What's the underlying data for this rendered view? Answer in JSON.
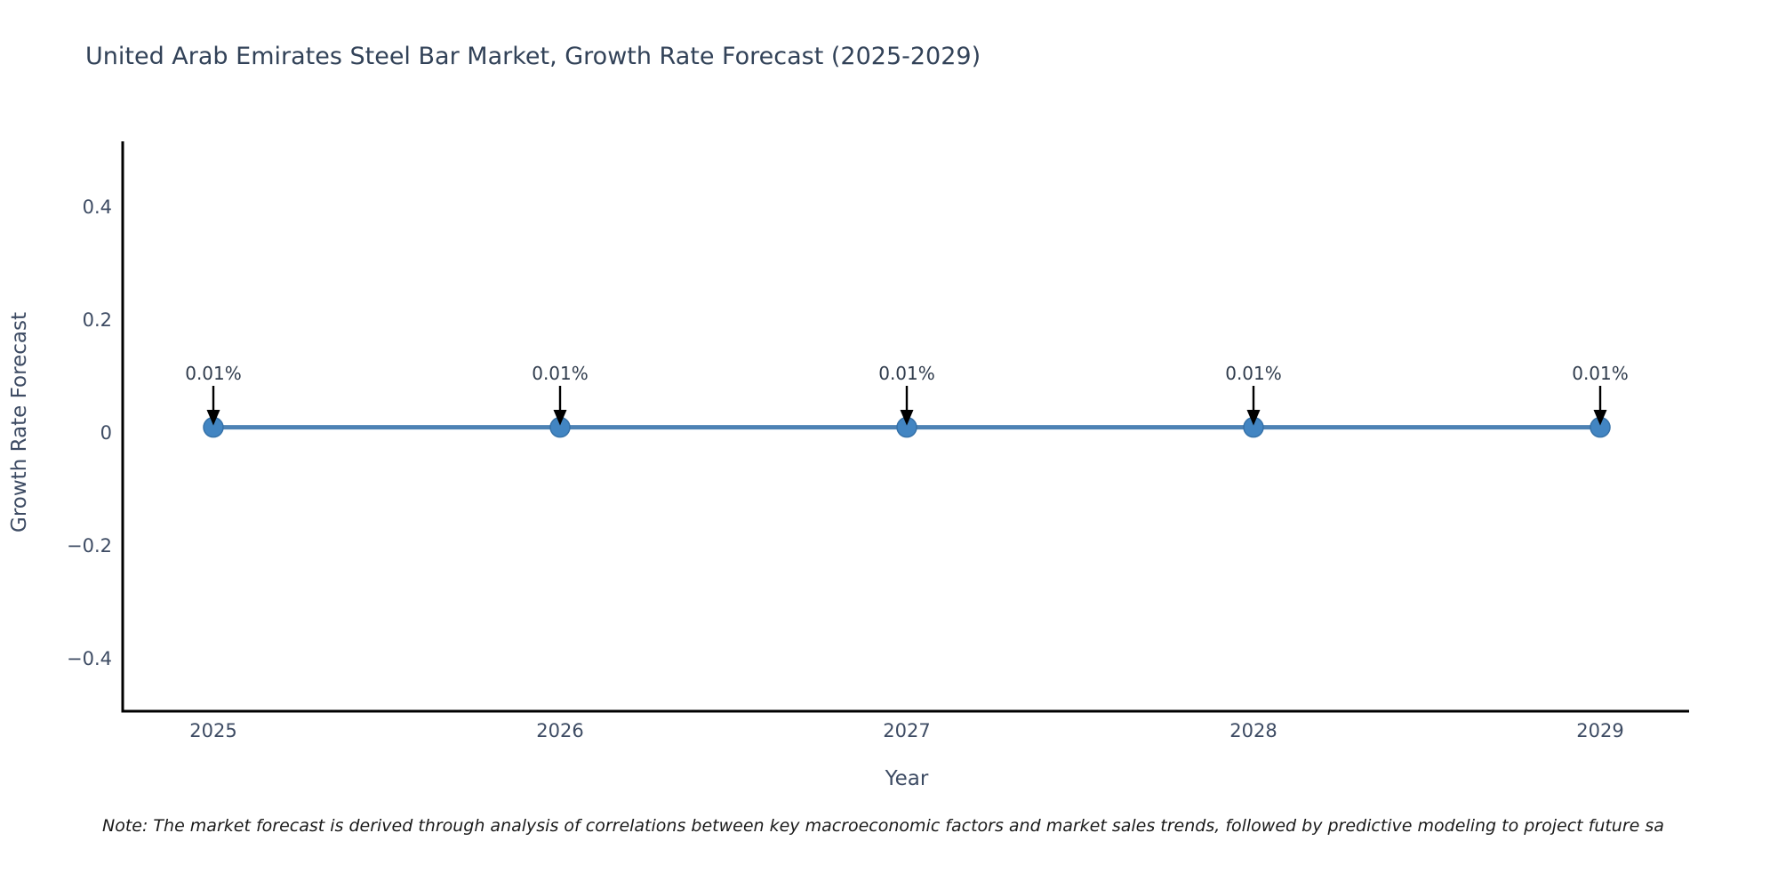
{
  "note": "Note: The market forecast is derived through analysis of correlations between key macroeconomic factors and market sales trends, followed by predictive modeling to project future sa",
  "chart_data": {
    "type": "line",
    "title": "United Arab Emirates Steel Bar Market, Growth Rate Forecast (2025-2029)",
    "xlabel": "Year",
    "ylabel": "Growth Rate Forecast",
    "x": [
      "2025",
      "2026",
      "2027",
      "2028",
      "2029"
    ],
    "series": [
      {
        "name": "Growth Rate Forecast",
        "values": [
          0.01,
          0.01,
          0.01,
          0.01,
          0.01
        ]
      }
    ],
    "point_labels": [
      "0.01%",
      "0.01%",
      "0.01%",
      "0.01%",
      "0.01%"
    ],
    "ytick_values": [
      0.4,
      0.2,
      0,
      -0.2,
      -0.4
    ],
    "ytick_labels": [
      "0.4",
      "0.2",
      "0",
      "−0.2",
      "−0.4"
    ],
    "ylim": [
      -0.493,
      0.515
    ],
    "grid": false,
    "legend": "none",
    "annotation_style": "down-arrow",
    "colors": {
      "line": "#4d82b4",
      "marker": "#4285c2",
      "marker_edge": "#3672a9",
      "axis": "#000000",
      "title_text": "#324258",
      "tick_text": "#3d4b63",
      "axis_label_text": "#3d4b63",
      "annotation_text": "#2f3b4c",
      "arrow": "#000000",
      "note_text": "#1a1a1a",
      "background": "#ffffff"
    }
  }
}
